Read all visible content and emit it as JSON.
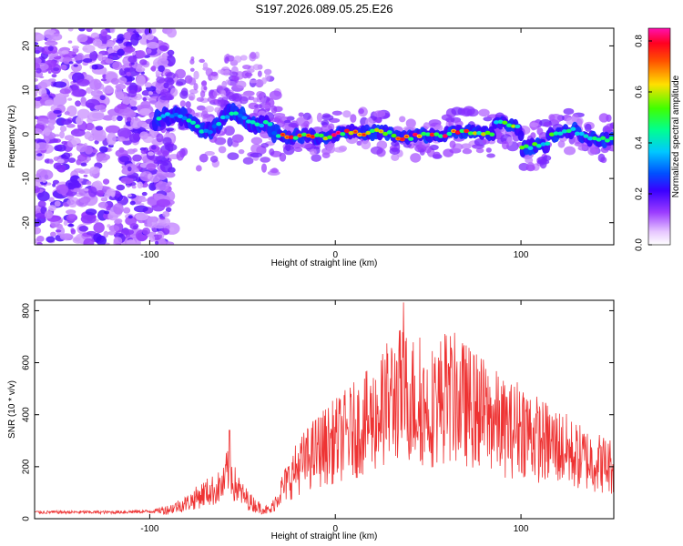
{
  "title": "S197.2026.089.05.25.E26",
  "chart_data": [
    {
      "type": "heatmap",
      "panel": "spectrogram",
      "xlabel": "Height of straight line (km)",
      "ylabel": "Frequency (Hz)",
      "xlim": [
        -162,
        150
      ],
      "ylim": [
        -25,
        24
      ],
      "xticks": [
        -100,
        0,
        100
      ],
      "yticks": [
        -20,
        -10,
        0,
        10,
        20
      ],
      "colorbar": {
        "label": "Normalized spectral amplitude",
        "range": [
          0,
          0.85
        ],
        "ticks": [
          0.0,
          0.2,
          0.4,
          0.6,
          0.8
        ]
      },
      "description": "Noisy speckle below ~-95 km; signal ridge near 0 Hz from about -97 to 150 km, peaking ~0.8 between -20 and 70 km"
    },
    {
      "type": "line",
      "panel": "snr",
      "xlabel": "Height of straight line (km)",
      "ylabel": "SNR (10 * v/v)",
      "xlim": [
        -162,
        150
      ],
      "ylim": [
        0,
        840
      ],
      "xticks": [
        -100,
        0,
        100
      ],
      "yticks": [
        0,
        200,
        400,
        600,
        800
      ],
      "color": "#ee3333",
      "series": [
        {
          "name": "SNR",
          "x": [
            -162,
            -140,
            -120,
            -100,
            -90,
            -80,
            -75,
            -70,
            -65,
            -60,
            -57,
            -55,
            -50,
            -45,
            -40,
            -35,
            -30,
            -25,
            -20,
            -15,
            -10,
            -5,
            0,
            5,
            10,
            15,
            20,
            25,
            30,
            35,
            40,
            45,
            50,
            55,
            60,
            65,
            70,
            75,
            80,
            85,
            90,
            95,
            100,
            105,
            110,
            115,
            120,
            125,
            130,
            135,
            140,
            145,
            150
          ],
          "values": [
            25,
            25,
            25,
            28,
            35,
            60,
            80,
            100,
            110,
            130,
            220,
            140,
            90,
            60,
            40,
            30,
            100,
            150,
            200,
            230,
            260,
            280,
            300,
            320,
            340,
            360,
            380,
            420,
            460,
            480,
            470,
            440,
            420,
            450,
            470,
            460,
            440,
            420,
            400,
            380,
            350,
            340,
            360,
            330,
            300,
            290,
            280,
            260,
            240,
            230,
            220,
            210,
            200
          ]
        }
      ]
    }
  ]
}
